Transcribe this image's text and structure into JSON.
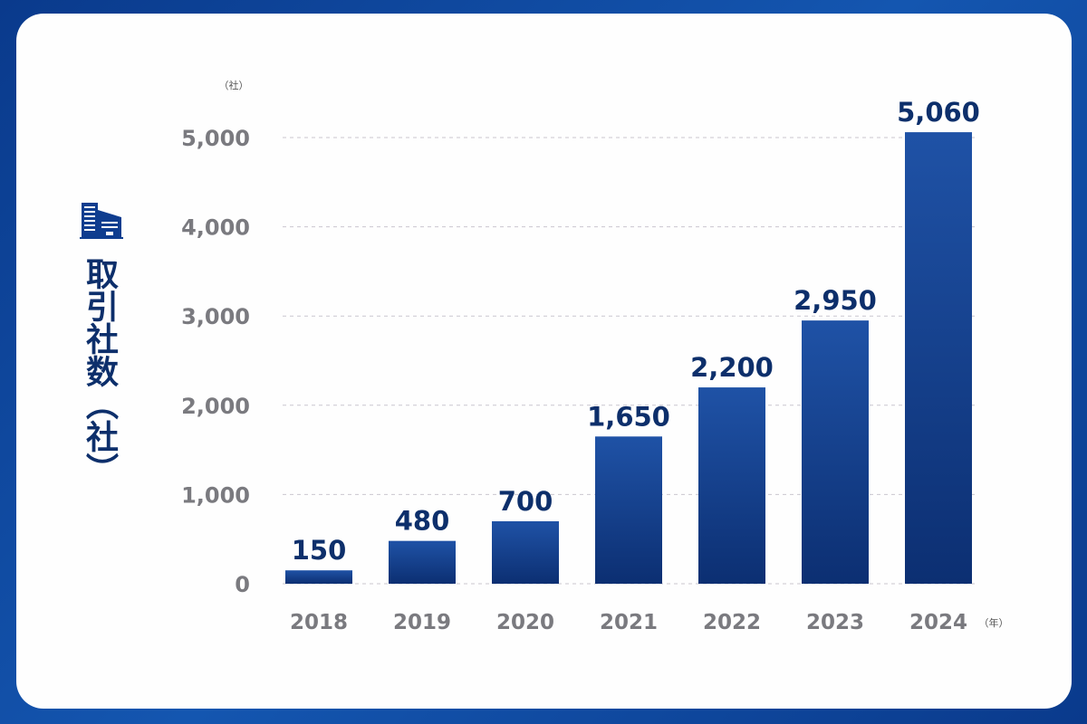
{
  "chart_data": {
    "type": "bar",
    "ylabel": "取引社数（社）",
    "y_unit": "（社）",
    "x_unit": "（年）",
    "categories": [
      "2018",
      "2019",
      "2020",
      "2021",
      "2022",
      "2023",
      "2024"
    ],
    "values": [
      150,
      480,
      700,
      1650,
      2200,
      2950,
      5060
    ],
    "value_labels": [
      "150",
      "480",
      "700",
      "1,650",
      "2,200",
      "2,950",
      "5,060"
    ],
    "yticks": [
      0,
      1000,
      2000,
      3000,
      4000,
      5000
    ],
    "ytick_labels": [
      "0",
      "1,000",
      "2,000",
      "3,000",
      "4,000",
      "5,000"
    ],
    "ylim": [
      0,
      5200
    ],
    "grid": "horizontal dashed",
    "icon": "office-building-icon",
    "colors": {
      "bar_top": "#1f52a6",
      "bar_bottom": "#0c2f72",
      "label": "#0d2f6b",
      "tick": "#7a7a7f",
      "frame": "#0a3a8c"
    }
  }
}
